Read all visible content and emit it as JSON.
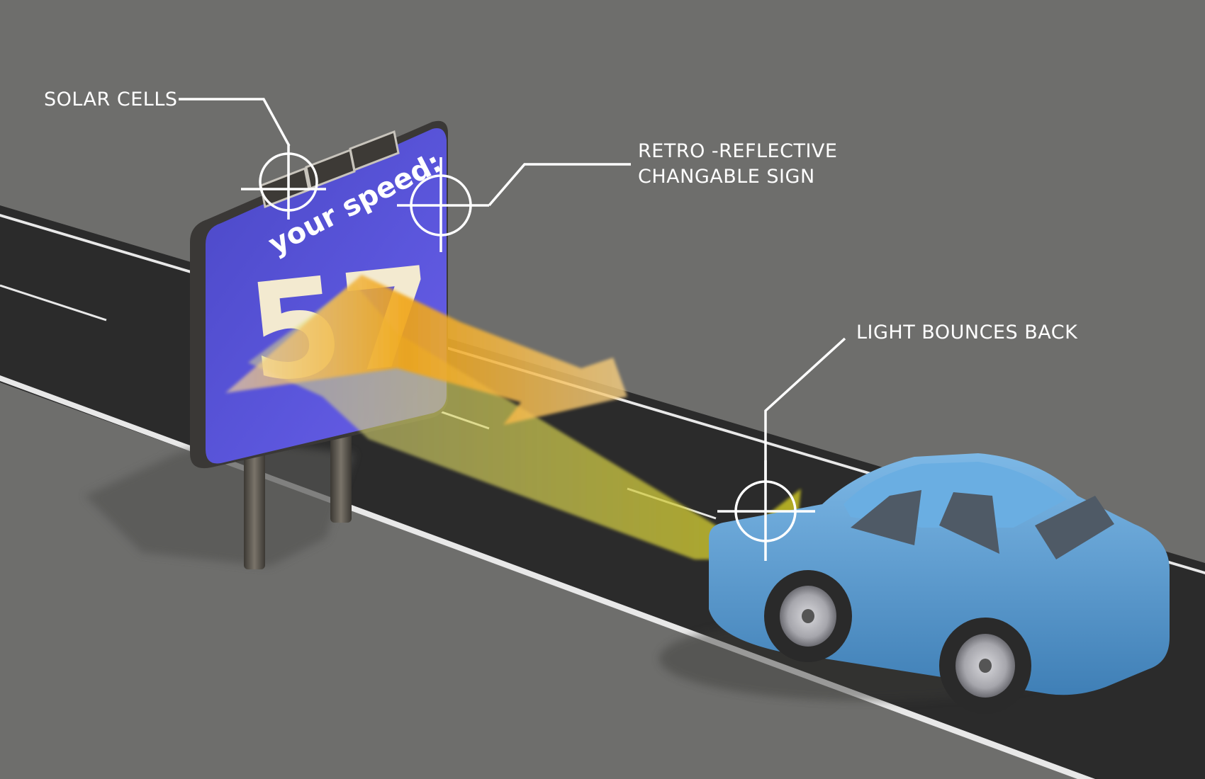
{
  "sign": {
    "caption": "your speed:",
    "speed": "57"
  },
  "callouts": {
    "solar_cells": "SOLAR CELLS",
    "sign_line1": "RETRO -REFLECTIVE",
    "sign_line2": "CHANGABLE SIGN",
    "light": "LIGHT BOUNCES BACK"
  },
  "colors": {
    "ground": "#6e6e6c",
    "road": "#2a2a2a",
    "sign_face": "#5a55d8",
    "beam_orange": "#f2a31a",
    "beam_yellow": "#c9c21f",
    "car_body": "#5aa0d8",
    "callout": "#ffffff"
  }
}
